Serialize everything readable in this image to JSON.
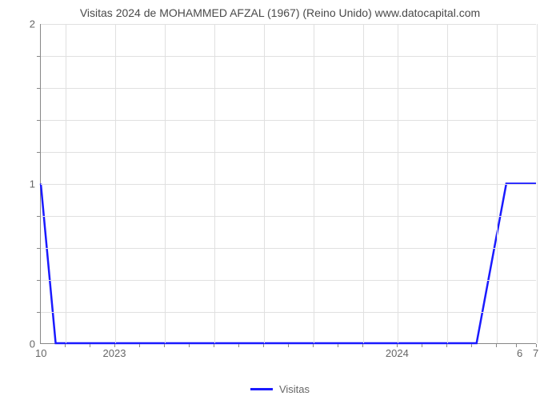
{
  "title": "Visitas 2024 de MOHAMMED AFZAL (1967) (Reino Unido) www.datocapital.com",
  "chart": {
    "type": "line",
    "background_color": "#ffffff",
    "grid_color": "#e0e0e0",
    "axis_color": "#888888",
    "line_color": "#1a1aff",
    "line_width": 2.5,
    "ylim": [
      0,
      2
    ],
    "ymajor_ticks": [
      0,
      1,
      2
    ],
    "yminor_ticks_per_interval": 4,
    "x_major_labels": [
      "2023",
      "2024"
    ],
    "x_major_positions_pct": [
      15,
      72
    ],
    "x_grid_positions_pct": [
      5,
      15,
      25,
      35,
      45,
      55,
      65,
      72,
      82,
      92,
      100
    ],
    "x_minor_tick_positions_pct": [
      5,
      10,
      15,
      20,
      25,
      30,
      35,
      40,
      45,
      50,
      55,
      60,
      65,
      72,
      77,
      82,
      87,
      92,
      96,
      100
    ],
    "corner_labels": {
      "bottom_left": "10",
      "bottom_right_a": "6",
      "bottom_right_b": "7"
    },
    "series": {
      "name": "Visitas",
      "points_pct": [
        [
          0,
          1
        ],
        [
          3,
          0
        ],
        [
          88,
          0
        ],
        [
          94,
          1
        ],
        [
          100,
          1
        ]
      ]
    },
    "title_fontsize": 14,
    "tick_fontsize": 13,
    "label_color": "#666666"
  },
  "legend": {
    "label": "Visitas"
  }
}
